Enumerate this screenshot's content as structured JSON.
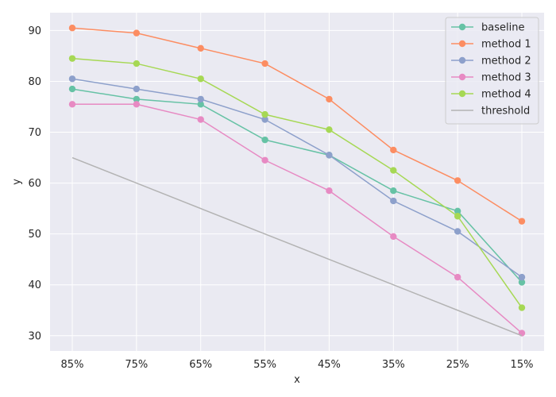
{
  "chart_data": {
    "type": "line",
    "title": "",
    "xlabel": "x",
    "ylabel": "y",
    "categories": [
      "85%",
      "75%",
      "65%",
      "55%",
      "45%",
      "35%",
      "25%",
      "15%"
    ],
    "ylim": [
      27,
      93.5
    ],
    "yticks": [
      30,
      40,
      50,
      60,
      70,
      80,
      90
    ],
    "grid": true,
    "legend_position": "top-right",
    "series": [
      {
        "name": "baseline",
        "color": "#66c2a5",
        "marker": "circle",
        "values": [
          78.5,
          76.5,
          75.5,
          68.5,
          65.5,
          58.5,
          54.5,
          40.5
        ]
      },
      {
        "name": "method 1",
        "color": "#fc8d62",
        "marker": "circle",
        "values": [
          90.5,
          89.5,
          86.5,
          83.5,
          76.5,
          66.5,
          60.5,
          52.5
        ]
      },
      {
        "name": "method 2",
        "color": "#8da0cb",
        "marker": "circle",
        "values": [
          80.5,
          78.5,
          76.5,
          72.5,
          65.5,
          56.5,
          50.5,
          41.5
        ]
      },
      {
        "name": "method 3",
        "color": "#e78ac3",
        "marker": "circle",
        "values": [
          75.5,
          75.5,
          72.5,
          64.5,
          58.5,
          49.5,
          41.5,
          30.5
        ]
      },
      {
        "name": "method 4",
        "color": "#a6d854",
        "marker": "circle",
        "values": [
          84.5,
          83.5,
          80.5,
          73.5,
          70.5,
          62.5,
          53.5,
          35.5
        ]
      },
      {
        "name": "threshold",
        "color": "#b3b3b3",
        "marker": "none",
        "values": [
          65,
          60,
          55,
          50,
          45,
          40,
          35,
          30
        ]
      }
    ]
  }
}
